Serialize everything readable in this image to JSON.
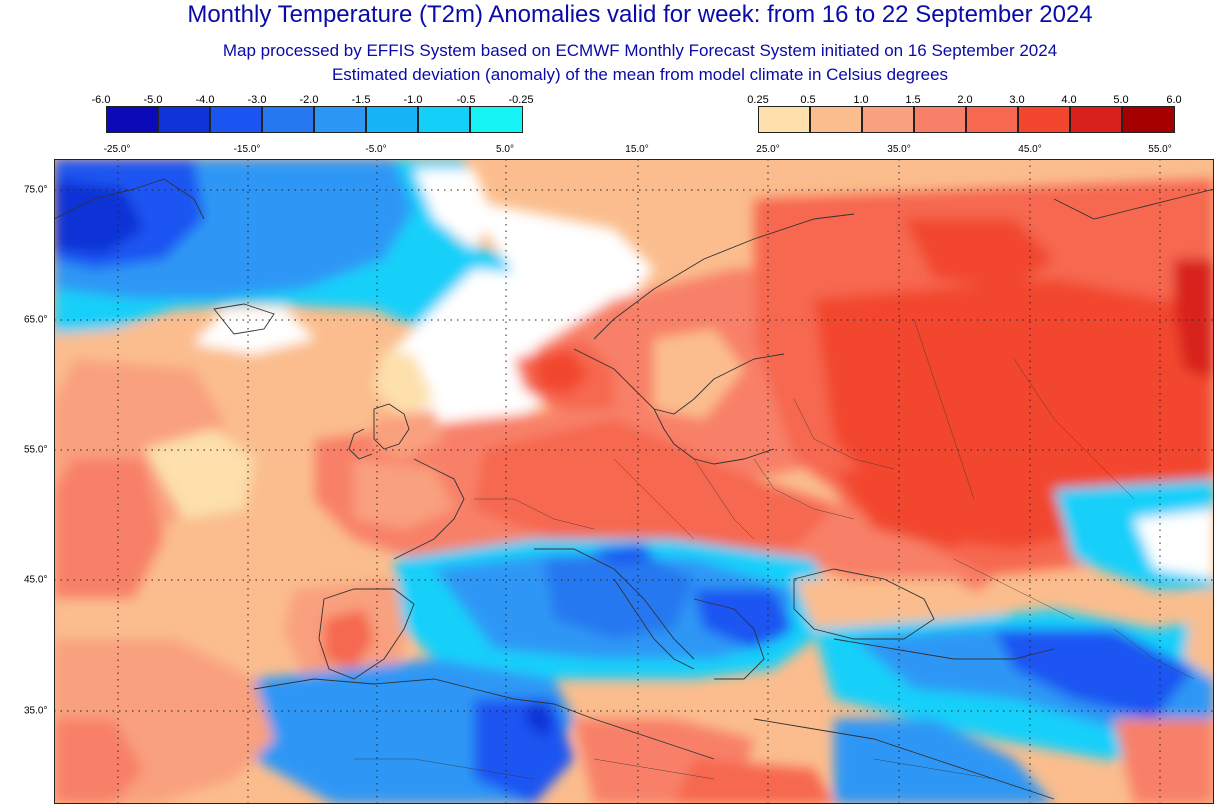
{
  "title": "Monthly Temperature (T2m) Anomalies valid for week: from 16 to 22 September 2024",
  "subtitle_line1": "Map processed by EFFIS System based on ECMWF Monthly Forecast System initiated on 16 September 2024",
  "subtitle_line2": "Estimated deviation (anomaly) of the mean from model climate in Celsius degrees",
  "colorbar_negative": {
    "labels": [
      "-6.0",
      "-5.0",
      "-4.0",
      "-3.0",
      "-2.0",
      "-1.5",
      "-1.0",
      "-0.5",
      "-0.25"
    ],
    "colors": [
      "#0a0ab8",
      "#0f33d6",
      "#1a55f2",
      "#2678f0",
      "#2d97f5",
      "#17b4f7",
      "#12d0fa",
      "#16f4f6"
    ]
  },
  "colorbar_positive": {
    "labels": [
      "0.25",
      "0.5",
      "1.0",
      "1.5",
      "2.0",
      "3.0",
      "4.0",
      "5.0",
      "6.0"
    ],
    "colors": [
      "#fde0ac",
      "#fbbd8d",
      "#f9a07e",
      "#f88068",
      "#f6684f",
      "#f2462f",
      "#d8201c",
      "#a50000"
    ]
  },
  "lon_labels": [
    "-25.0°",
    "-15.0°",
    "-5.0°",
    "5.0°",
    "15.0°",
    "25.0°",
    "35.0°",
    "45.0°",
    "55.0°"
  ],
  "lat_labels": [
    "75.0°",
    "65.0°",
    "55.0°",
    "45.0°",
    "35.0°"
  ],
  "colors": {
    "title": "#0a0aa8",
    "land_border": "#333333",
    "grid": "#222222"
  }
}
